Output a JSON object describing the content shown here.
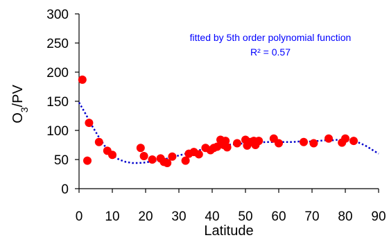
{
  "chart_data": {
    "type": "scatter",
    "title": "",
    "xlabel": "Latitude",
    "ylabel_main": "O",
    "ylabel_sub": "3",
    "ylabel_rest": "/PV",
    "xlim": [
      0,
      90
    ],
    "ylim": [
      0,
      300
    ],
    "xticks": [
      0,
      10,
      20,
      30,
      40,
      50,
      60,
      70,
      80,
      90
    ],
    "yticks": [
      0,
      50,
      100,
      150,
      200,
      250,
      300
    ],
    "grid": false,
    "annotation_line1": "fitted by 5th order polynomial function",
    "annotation_line2": "R² = 0.57",
    "colors": {
      "points": "#ff0000",
      "fit": "#0000cc",
      "annotation": "#0000ff",
      "axis": "#000000"
    },
    "points": [
      [
        1,
        187
      ],
      [
        2.5,
        48
      ],
      [
        3,
        113
      ],
      [
        6,
        80
      ],
      [
        8.5,
        65
      ],
      [
        10,
        58
      ],
      [
        18.5,
        70
      ],
      [
        19.5,
        56
      ],
      [
        22,
        50
      ],
      [
        24.5,
        52
      ],
      [
        25.5,
        46
      ],
      [
        26.5,
        44
      ],
      [
        28,
        55
      ],
      [
        32,
        48
      ],
      [
        33,
        60
      ],
      [
        34.5,
        63
      ],
      [
        36,
        59
      ],
      [
        38,
        70
      ],
      [
        39.5,
        66
      ],
      [
        40.5,
        70
      ],
      [
        41.5,
        72
      ],
      [
        42.5,
        84
      ],
      [
        43.5,
        75
      ],
      [
        44,
        82
      ],
      [
        44.5,
        71
      ],
      [
        47.5,
        78
      ],
      [
        50,
        84
      ],
      [
        50.5,
        74
      ],
      [
        51.5,
        80
      ],
      [
        52.5,
        82
      ],
      [
        53,
        75
      ],
      [
        54,
        82
      ],
      [
        58.5,
        86
      ],
      [
        60,
        78
      ],
      [
        67.5,
        80
      ],
      [
        70.5,
        78
      ],
      [
        75,
        86
      ],
      [
        79,
        79
      ],
      [
        80,
        86
      ],
      [
        82.5,
        82
      ]
    ],
    "fit_curve": [
      [
        0,
        148
      ],
      [
        2,
        128
      ],
      [
        4,
        107
      ],
      [
        6,
        88
      ],
      [
        8,
        71
      ],
      [
        10,
        58
      ],
      [
        12,
        50
      ],
      [
        14,
        46
      ],
      [
        16,
        44
      ],
      [
        18,
        44
      ],
      [
        20,
        45
      ],
      [
        22,
        47
      ],
      [
        24,
        49
      ],
      [
        26,
        51
      ],
      [
        28,
        54
      ],
      [
        30,
        57
      ],
      [
        32,
        60
      ],
      [
        34,
        63
      ],
      [
        36,
        66
      ],
      [
        38,
        68
      ],
      [
        40,
        71
      ],
      [
        42,
        73
      ],
      [
        44,
        75
      ],
      [
        46,
        76
      ],
      [
        48,
        77
      ],
      [
        50,
        78
      ],
      [
        52,
        79
      ],
      [
        54,
        79
      ],
      [
        56,
        80
      ],
      [
        58,
        80
      ],
      [
        60,
        80
      ],
      [
        62,
        80
      ],
      [
        64,
        80
      ],
      [
        66,
        81
      ],
      [
        68,
        81
      ],
      [
        70,
        81
      ],
      [
        72,
        82
      ],
      [
        74,
        83
      ],
      [
        76,
        83
      ],
      [
        78,
        84
      ],
      [
        80,
        83
      ],
      [
        82,
        82
      ],
      [
        84,
        79
      ],
      [
        86,
        74
      ],
      [
        88,
        67
      ],
      [
        90,
        60
      ]
    ]
  }
}
